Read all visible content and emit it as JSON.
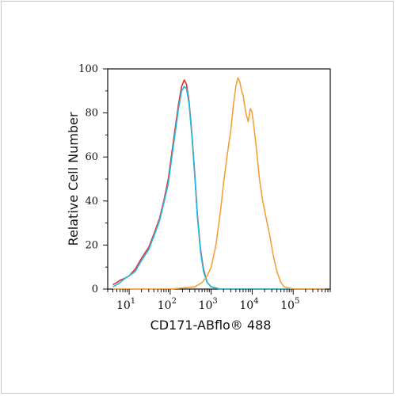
{
  "chart_data": {
    "type": "line",
    "xlabel": "CD171-ABflo® 488",
    "ylabel": "Relative Cell Number",
    "x_scale": "log",
    "xlim": [
      3,
      800000
    ],
    "ylim": [
      0,
      100
    ],
    "yticks": [
      0,
      20,
      40,
      60,
      80,
      100
    ],
    "ytick_labels": [
      "0",
      "20",
      "40",
      "60",
      "80",
      "100"
    ],
    "xticks": [
      {
        "value": 10,
        "base": "10",
        "exp": "1"
      },
      {
        "value": 100,
        "base": "10",
        "exp": "2"
      },
      {
        "value": 1000,
        "base": "10",
        "exp": "3"
      },
      {
        "value": 10000,
        "base": "10",
        "exp": "4"
      },
      {
        "value": 100000,
        "base": "10",
        "exp": "5"
      }
    ],
    "grid": false,
    "legend": "none",
    "series": [
      {
        "color": "#e8302a",
        "x": [
          4,
          5,
          6,
          8,
          10,
          14,
          20,
          30,
          40,
          55,
          70,
          90,
          110,
          130,
          160,
          190,
          220,
          250,
          290,
          340,
          400,
          460,
          550,
          650,
          800,
          1000,
          1300,
          1700,
          2500,
          4000,
          10000,
          100000,
          600000
        ],
        "y": [
          2,
          3,
          4,
          5,
          6,
          9,
          14,
          19,
          25,
          32,
          40,
          50,
          62,
          72,
          84,
          92,
          95,
          93,
          85,
          70,
          52,
          34,
          18,
          9,
          3,
          1,
          0.5,
          0,
          0,
          0,
          0,
          0,
          0
        ]
      },
      {
        "color": "#1fb8e0",
        "x": [
          4,
          5,
          6,
          8,
          10,
          14,
          20,
          30,
          40,
          55,
          70,
          90,
          110,
          130,
          160,
          190,
          220,
          250,
          290,
          340,
          400,
          460,
          550,
          650,
          800,
          1000,
          1300,
          1700,
          2500,
          4000,
          10000,
          100000,
          600000
        ],
        "y": [
          1,
          2,
          3,
          5,
          6,
          8,
          13,
          18,
          24,
          31,
          39,
          48,
          60,
          70,
          82,
          90,
          92,
          91,
          84,
          69,
          51,
          33,
          17,
          8,
          3,
          1,
          0.5,
          0,
          0,
          0,
          0,
          0,
          0
        ]
      },
      {
        "color": "#f5a13a",
        "x": [
          4,
          50,
          100,
          200,
          400,
          600,
          800,
          1000,
          1300,
          1700,
          2000,
          2500,
          3000,
          3500,
          4000,
          4500,
          5000,
          5500,
          6000,
          7000,
          8000,
          9000,
          10000,
          12000,
          15000,
          18000,
          22000,
          27000,
          32000,
          40000,
          50000,
          60000,
          80000,
          100000,
          200000,
          600000
        ],
        "y": [
          0,
          0,
          0,
          0.5,
          1,
          3,
          6,
          10,
          20,
          36,
          48,
          62,
          72,
          84,
          92,
          96,
          94,
          90,
          88,
          80,
          76,
          82,
          80,
          68,
          50,
          40,
          32,
          24,
          16,
          8,
          3,
          1,
          0.5,
          0,
          0,
          0
        ]
      }
    ]
  }
}
